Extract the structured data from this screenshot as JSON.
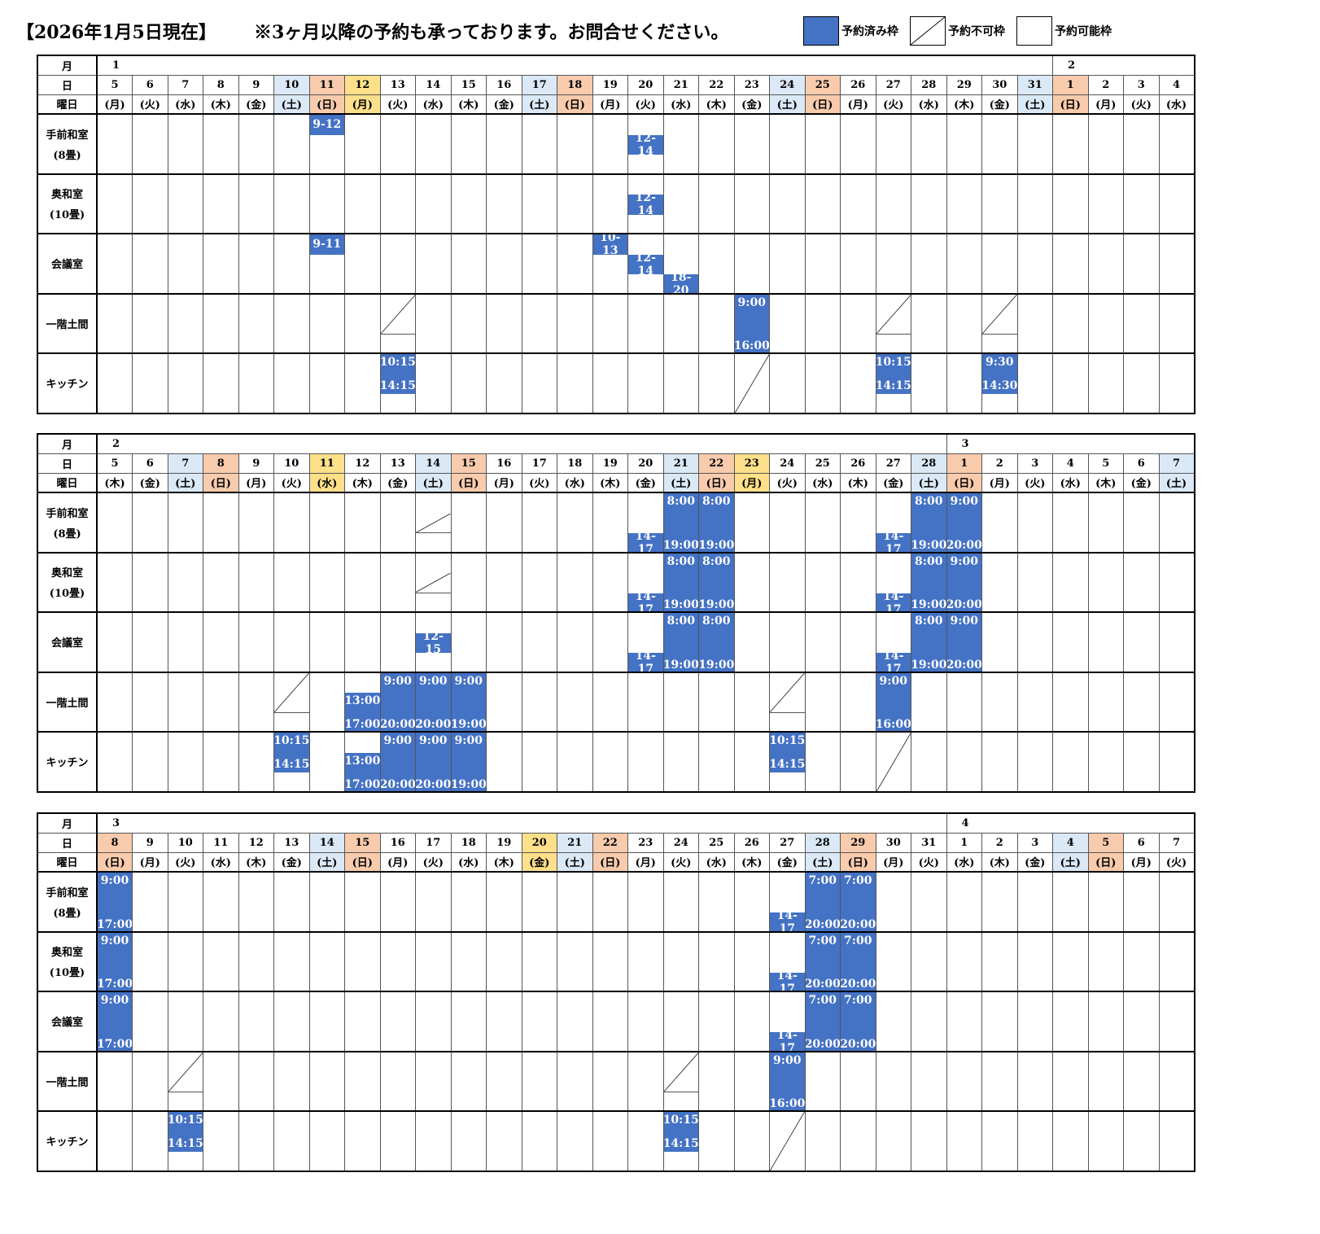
{
  "header": {
    "date": "【2026年1月5日現在】",
    "notice": "※3ヶ月以降の予約も承っております。お問合せください。",
    "legend": [
      {
        "label": "予約済み枠",
        "kind": "booked"
      },
      {
        "label": "予約不可枠",
        "kind": "unavailable"
      },
      {
        "label": "予約可能枠",
        "kind": "available"
      }
    ]
  },
  "colors": {
    "booked": "#4472c4",
    "saturday": "#dbe9f6",
    "sunday": "#f8cbad",
    "holiday": "#ffe08a"
  },
  "row_labels": {
    "month": "月",
    "day": "日",
    "weekday": "曜日"
  },
  "rooms": [
    {
      "name": "手前和室",
      "sub": "(8畳)"
    },
    {
      "name": "奥和室",
      "sub": "(10畳)"
    },
    {
      "name": "会議室",
      "sub": ""
    },
    {
      "name": "一階土間",
      "sub": ""
    },
    {
      "name": "キッチン",
      "sub": ""
    }
  ],
  "tables": [
    {
      "months": [
        {
          "col": 0,
          "label": "1"
        },
        {
          "col": 27,
          "label": "2"
        }
      ],
      "days": [
        {
          "d": "5",
          "w": "(月)",
          "c": ""
        },
        {
          "d": "6",
          "w": "(火)",
          "c": ""
        },
        {
          "d": "7",
          "w": "(水)",
          "c": ""
        },
        {
          "d": "8",
          "w": "(木)",
          "c": ""
        },
        {
          "d": "9",
          "w": "(金)",
          "c": ""
        },
        {
          "d": "10",
          "w": "(土)",
          "c": "sat"
        },
        {
          "d": "11",
          "w": "(日)",
          "c": "sun"
        },
        {
          "d": "12",
          "w": "(月)",
          "c": "hol"
        },
        {
          "d": "13",
          "w": "(火)",
          "c": ""
        },
        {
          "d": "14",
          "w": "(水)",
          "c": ""
        },
        {
          "d": "15",
          "w": "(木)",
          "c": ""
        },
        {
          "d": "16",
          "w": "(金)",
          "c": ""
        },
        {
          "d": "17",
          "w": "(土)",
          "c": "sat"
        },
        {
          "d": "18",
          "w": "(日)",
          "c": "sun"
        },
        {
          "d": "19",
          "w": "(月)",
          "c": ""
        },
        {
          "d": "20",
          "w": "(火)",
          "c": ""
        },
        {
          "d": "21",
          "w": "(水)",
          "c": ""
        },
        {
          "d": "22",
          "w": "(木)",
          "c": ""
        },
        {
          "d": "23",
          "w": "(金)",
          "c": ""
        },
        {
          "d": "24",
          "w": "(土)",
          "c": "sat"
        },
        {
          "d": "25",
          "w": "(日)",
          "c": "sun"
        },
        {
          "d": "26",
          "w": "(月)",
          "c": ""
        },
        {
          "d": "27",
          "w": "(火)",
          "c": ""
        },
        {
          "d": "28",
          "w": "(水)",
          "c": ""
        },
        {
          "d": "29",
          "w": "(木)",
          "c": ""
        },
        {
          "d": "30",
          "w": "(金)",
          "c": ""
        },
        {
          "d": "31",
          "w": "(土)",
          "c": "sat"
        },
        {
          "d": "1",
          "w": "(日)",
          "c": "sun"
        },
        {
          "d": "2",
          "w": "(月)",
          "c": ""
        },
        {
          "d": "3",
          "w": "(火)",
          "c": ""
        },
        {
          "d": "4",
          "w": "(水)",
          "c": ""
        }
      ],
      "bookings": [
        {
          "room": 0,
          "col": 6,
          "s": 0,
          "e": 1,
          "label": "9-12"
        },
        {
          "room": 0,
          "col": 15,
          "s": 1,
          "e": 2,
          "label": "12-14"
        },
        {
          "room": 1,
          "col": 15,
          "s": 1,
          "e": 2,
          "label": "12-14"
        },
        {
          "room": 2,
          "col": 6,
          "s": 0,
          "e": 1,
          "label": "9-11"
        },
        {
          "room": 2,
          "col": 14,
          "s": 0,
          "e": 1,
          "label": "10-13"
        },
        {
          "room": 2,
          "col": 15,
          "s": 1,
          "e": 2,
          "label": "12-14"
        },
        {
          "room": 2,
          "col": 16,
          "s": 2,
          "e": 3,
          "label": "18-20"
        },
        {
          "room": 3,
          "col": 18,
          "s": 0,
          "e": 3,
          "start": "9:00",
          "end": "16:00"
        },
        {
          "room": 4,
          "col": 8,
          "s": 0,
          "e": 2,
          "start": "10:15",
          "end": "14:15"
        },
        {
          "room": 4,
          "col": 22,
          "s": 0,
          "e": 2,
          "start": "10:15",
          "end": "14:15"
        },
        {
          "room": 4,
          "col": 25,
          "s": 0,
          "e": 2,
          "start": "9:30",
          "end": "14:30"
        }
      ],
      "unavailable": [
        {
          "room": 3,
          "col": 8,
          "s": 0,
          "e": 2
        },
        {
          "room": 3,
          "col": 22,
          "s": 0,
          "e": 2
        },
        {
          "room": 3,
          "col": 25,
          "s": 0,
          "e": 2
        },
        {
          "room": 4,
          "col": 18,
          "s": 0,
          "e": 3
        }
      ]
    },
    {
      "months": [
        {
          "col": 0,
          "label": "2"
        },
        {
          "col": 24,
          "label": "3"
        }
      ],
      "days": [
        {
          "d": "5",
          "w": "(木)",
          "c": ""
        },
        {
          "d": "6",
          "w": "(金)",
          "c": ""
        },
        {
          "d": "7",
          "w": "(土)",
          "c": "sat"
        },
        {
          "d": "8",
          "w": "(日)",
          "c": "sun"
        },
        {
          "d": "9",
          "w": "(月)",
          "c": ""
        },
        {
          "d": "10",
          "w": "(火)",
          "c": ""
        },
        {
          "d": "11",
          "w": "(水)",
          "c": "hol"
        },
        {
          "d": "12",
          "w": "(木)",
          "c": ""
        },
        {
          "d": "13",
          "w": "(金)",
          "c": ""
        },
        {
          "d": "14",
          "w": "(土)",
          "c": "sat"
        },
        {
          "d": "15",
          "w": "(日)",
          "c": "sun"
        },
        {
          "d": "16",
          "w": "(月)",
          "c": ""
        },
        {
          "d": "17",
          "w": "(火)",
          "c": ""
        },
        {
          "d": "18",
          "w": "(水)",
          "c": ""
        },
        {
          "d": "19",
          "w": "(木)",
          "c": ""
        },
        {
          "d": "20",
          "w": "(金)",
          "c": ""
        },
        {
          "d": "21",
          "w": "(土)",
          "c": "sat"
        },
        {
          "d": "22",
          "w": "(日)",
          "c": "sun"
        },
        {
          "d": "23",
          "w": "(月)",
          "c": "hol"
        },
        {
          "d": "24",
          "w": "(火)",
          "c": ""
        },
        {
          "d": "25",
          "w": "(水)",
          "c": ""
        },
        {
          "d": "26",
          "w": "(木)",
          "c": ""
        },
        {
          "d": "27",
          "w": "(金)",
          "c": ""
        },
        {
          "d": "28",
          "w": "(土)",
          "c": "sat"
        },
        {
          "d": "1",
          "w": "(日)",
          "c": "sun"
        },
        {
          "d": "2",
          "w": "(月)",
          "c": ""
        },
        {
          "d": "3",
          "w": "(火)",
          "c": ""
        },
        {
          "d": "4",
          "w": "(水)",
          "c": ""
        },
        {
          "d": "5",
          "w": "(木)",
          "c": ""
        },
        {
          "d": "6",
          "w": "(金)",
          "c": ""
        },
        {
          "d": "7",
          "w": "(土)",
          "c": "sat"
        }
      ],
      "bookings": [
        {
          "room": 0,
          "col": 15,
          "s": 2,
          "e": 3,
          "label": "14-17"
        },
        {
          "room": 0,
          "col": 16,
          "s": 0,
          "e": 3,
          "start": "8:00",
          "end": "19:00"
        },
        {
          "room": 0,
          "col": 17,
          "s": 0,
          "e": 3,
          "start": "8:00",
          "end": "19:00"
        },
        {
          "room": 0,
          "col": 22,
          "s": 2,
          "e": 3,
          "label": "14-17"
        },
        {
          "room": 0,
          "col": 23,
          "s": 0,
          "e": 3,
          "start": "8:00",
          "end": "19:00"
        },
        {
          "room": 0,
          "col": 24,
          "s": 0,
          "e": 3,
          "start": "9:00",
          "end": "20:00"
        },
        {
          "room": 1,
          "col": 15,
          "s": 2,
          "e": 3,
          "label": "14-17"
        },
        {
          "room": 1,
          "col": 16,
          "s": 0,
          "e": 3,
          "start": "8:00",
          "end": "19:00"
        },
        {
          "room": 1,
          "col": 17,
          "s": 0,
          "e": 3,
          "start": "8:00",
          "end": "19:00"
        },
        {
          "room": 1,
          "col": 22,
          "s": 2,
          "e": 3,
          "label": "14-17"
        },
        {
          "room": 1,
          "col": 23,
          "s": 0,
          "e": 3,
          "start": "8:00",
          "end": "19:00"
        },
        {
          "room": 1,
          "col": 24,
          "s": 0,
          "e": 3,
          "start": "9:00",
          "end": "20:00"
        },
        {
          "room": 2,
          "col": 9,
          "s": 1,
          "e": 2,
          "label": "12-15"
        },
        {
          "room": 2,
          "col": 15,
          "s": 2,
          "e": 3,
          "label": "14-17"
        },
        {
          "room": 2,
          "col": 16,
          "s": 0,
          "e": 3,
          "start": "8:00",
          "end": "19:00"
        },
        {
          "room": 2,
          "col": 17,
          "s": 0,
          "e": 3,
          "start": "8:00",
          "end": "19:00"
        },
        {
          "room": 2,
          "col": 22,
          "s": 2,
          "e": 3,
          "label": "14-17"
        },
        {
          "room": 2,
          "col": 23,
          "s": 0,
          "e": 3,
          "start": "8:00",
          "end": "19:00"
        },
        {
          "room": 2,
          "col": 24,
          "s": 0,
          "e": 3,
          "start": "9:00",
          "end": "20:00"
        },
        {
          "room": 3,
          "col": 7,
          "s": 1,
          "e": 3,
          "start": "13:00",
          "end": "17:00"
        },
        {
          "room": 3,
          "col": 8,
          "s": 0,
          "e": 3,
          "start": "9:00",
          "end": "20:00"
        },
        {
          "room": 3,
          "col": 9,
          "s": 0,
          "e": 3,
          "start": "9:00",
          "end": "20:00"
        },
        {
          "room": 3,
          "col": 10,
          "s": 0,
          "e": 3,
          "start": "9:00",
          "end": "19:00"
        },
        {
          "room": 3,
          "col": 22,
          "s": 0,
          "e": 3,
          "start": "9:00",
          "end": "16:00"
        },
        {
          "room": 4,
          "col": 5,
          "s": 0,
          "e": 2,
          "start": "10:15",
          "end": "14:15"
        },
        {
          "room": 4,
          "col": 7,
          "s": 1,
          "e": 3,
          "start": "13:00",
          "end": "17:00"
        },
        {
          "room": 4,
          "col": 8,
          "s": 0,
          "e": 3,
          "start": "9:00",
          "end": "20:00"
        },
        {
          "room": 4,
          "col": 9,
          "s": 0,
          "e": 3,
          "start": "9:00",
          "end": "20:00"
        },
        {
          "room": 4,
          "col": 10,
          "s": 0,
          "e": 3,
          "start": "9:00",
          "end": "19:00"
        },
        {
          "room": 4,
          "col": 19,
          "s": 0,
          "e": 2,
          "start": "10:15",
          "end": "14:15"
        }
      ],
      "unavailable": [
        {
          "room": 0,
          "col": 9,
          "s": 1,
          "e": 2
        },
        {
          "room": 1,
          "col": 9,
          "s": 1,
          "e": 2
        },
        {
          "room": 3,
          "col": 5,
          "s": 0,
          "e": 2
        },
        {
          "room": 3,
          "col": 19,
          "s": 0,
          "e": 2
        },
        {
          "room": 4,
          "col": 22,
          "s": 0,
          "e": 3
        }
      ]
    },
    {
      "months": [
        {
          "col": 0,
          "label": "3"
        },
        {
          "col": 24,
          "label": "4"
        }
      ],
      "days": [
        {
          "d": "8",
          "w": "(日)",
          "c": "sun"
        },
        {
          "d": "9",
          "w": "(月)",
          "c": ""
        },
        {
          "d": "10",
          "w": "(火)",
          "c": ""
        },
        {
          "d": "11",
          "w": "(水)",
          "c": ""
        },
        {
          "d": "12",
          "w": "(木)",
          "c": ""
        },
        {
          "d": "13",
          "w": "(金)",
          "c": ""
        },
        {
          "d": "14",
          "w": "(土)",
          "c": "sat"
        },
        {
          "d": "15",
          "w": "(日)",
          "c": "sun"
        },
        {
          "d": "16",
          "w": "(月)",
          "c": ""
        },
        {
          "d": "17",
          "w": "(火)",
          "c": ""
        },
        {
          "d": "18",
          "w": "(水)",
          "c": ""
        },
        {
          "d": "19",
          "w": "(木)",
          "c": ""
        },
        {
          "d": "20",
          "w": "(金)",
          "c": "hol"
        },
        {
          "d": "21",
          "w": "(土)",
          "c": "sat"
        },
        {
          "d": "22",
          "w": "(日)",
          "c": "sun"
        },
        {
          "d": "23",
          "w": "(月)",
          "c": ""
        },
        {
          "d": "24",
          "w": "(火)",
          "c": ""
        },
        {
          "d": "25",
          "w": "(水)",
          "c": ""
        },
        {
          "d": "26",
          "w": "(木)",
          "c": ""
        },
        {
          "d": "27",
          "w": "(金)",
          "c": ""
        },
        {
          "d": "28",
          "w": "(土)",
          "c": "sat"
        },
        {
          "d": "29",
          "w": "(日)",
          "c": "sun"
        },
        {
          "d": "30",
          "w": "(月)",
          "c": ""
        },
        {
          "d": "31",
          "w": "(火)",
          "c": ""
        },
        {
          "d": "1",
          "w": "(水)",
          "c": ""
        },
        {
          "d": "2",
          "w": "(木)",
          "c": ""
        },
        {
          "d": "3",
          "w": "(金)",
          "c": ""
        },
        {
          "d": "4",
          "w": "(土)",
          "c": "sat"
        },
        {
          "d": "5",
          "w": "(日)",
          "c": "sun"
        },
        {
          "d": "6",
          "w": "(月)",
          "c": ""
        },
        {
          "d": "7",
          "w": "(火)",
          "c": ""
        }
      ],
      "bookings": [
        {
          "room": 0,
          "col": 0,
          "s": 0,
          "e": 3,
          "start": "9:00",
          "end": "17:00"
        },
        {
          "room": 0,
          "col": 19,
          "s": 2,
          "e": 3,
          "label": "14-17"
        },
        {
          "room": 0,
          "col": 20,
          "s": 0,
          "e": 3,
          "start": "7:00",
          "end": "20:00"
        },
        {
          "room": 0,
          "col": 21,
          "s": 0,
          "e": 3,
          "start": "7:00",
          "end": "20:00"
        },
        {
          "room": 1,
          "col": 0,
          "s": 0,
          "e": 3,
          "start": "9:00",
          "end": "17:00"
        },
        {
          "room": 1,
          "col": 19,
          "s": 2,
          "e": 3,
          "label": "14-17"
        },
        {
          "room": 1,
          "col": 20,
          "s": 0,
          "e": 3,
          "start": "7:00",
          "end": "20:00"
        },
        {
          "room": 1,
          "col": 21,
          "s": 0,
          "e": 3,
          "start": "7:00",
          "end": "20:00"
        },
        {
          "room": 2,
          "col": 0,
          "s": 0,
          "e": 3,
          "start": "9:00",
          "end": "17:00"
        },
        {
          "room": 2,
          "col": 19,
          "s": 2,
          "e": 3,
          "label": "14-17"
        },
        {
          "room": 2,
          "col": 20,
          "s": 0,
          "e": 3,
          "start": "7:00",
          "end": "20:00"
        },
        {
          "room": 2,
          "col": 21,
          "s": 0,
          "e": 3,
          "start": "7:00",
          "end": "20:00"
        },
        {
          "room": 3,
          "col": 19,
          "s": 0,
          "e": 3,
          "start": "9:00",
          "end": "16:00"
        },
        {
          "room": 4,
          "col": 2,
          "s": 0,
          "e": 2,
          "start": "10:15",
          "end": "14:15"
        },
        {
          "room": 4,
          "col": 16,
          "s": 0,
          "e": 2,
          "start": "10:15",
          "end": "14:15"
        }
      ],
      "unavailable": [
        {
          "room": 3,
          "col": 2,
          "s": 0,
          "e": 2
        },
        {
          "room": 3,
          "col": 16,
          "s": 0,
          "e": 2
        },
        {
          "room": 4,
          "col": 19,
          "s": 0,
          "e": 3
        }
      ]
    }
  ]
}
